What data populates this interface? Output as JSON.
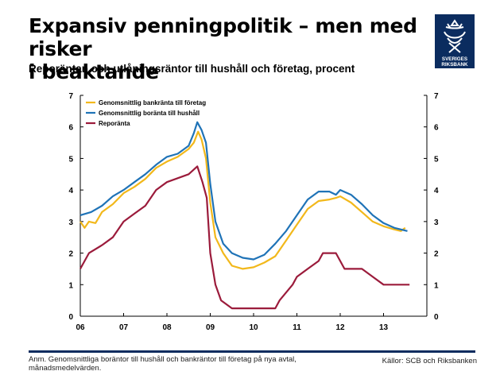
{
  "header": {
    "title_line1": "Expansiv penningpolitik – men med risker",
    "title_line2": "i beaktande",
    "subtitle": "Reporäntan och utlåningsräntor till hushåll och företag, procent"
  },
  "logo": {
    "text_line1": "SVERIGES",
    "text_line2": "RIKSBANK",
    "color": "#0b2c5f"
  },
  "footer": {
    "note": "Anm. Genomsnittliga boräntor till hushåll och bankräntor till företag på nya avtal, månadsmedelvärden.",
    "source": "Källor: SCB och Riksbanken"
  },
  "chart_data": {
    "type": "line",
    "xlim": [
      2006,
      2014
    ],
    "ylim": [
      0,
      7
    ],
    "x_ticks": [
      "06",
      "07",
      "08",
      "09",
      "10",
      "11",
      "12",
      "13"
    ],
    "y_ticks": [
      "0",
      "1",
      "2",
      "3",
      "4",
      "5",
      "6",
      "7"
    ],
    "legend_placement": "top-left",
    "grid": false,
    "series": [
      {
        "name": "Genomsnittlig bankränta till företag",
        "color": "#f2b81b",
        "points": [
          [
            2006.0,
            3.0
          ],
          [
            2006.1,
            2.8
          ],
          [
            2006.2,
            3.0
          ],
          [
            2006.35,
            2.95
          ],
          [
            2006.5,
            3.3
          ],
          [
            2006.75,
            3.55
          ],
          [
            2007.0,
            3.9
          ],
          [
            2007.25,
            4.1
          ],
          [
            2007.5,
            4.35
          ],
          [
            2007.75,
            4.7
          ],
          [
            2008.0,
            4.9
          ],
          [
            2008.25,
            5.05
          ],
          [
            2008.5,
            5.3
          ],
          [
            2008.62,
            5.5
          ],
          [
            2008.72,
            5.85
          ],
          [
            2008.8,
            5.6
          ],
          [
            2008.9,
            5.0
          ],
          [
            2009.0,
            3.6
          ],
          [
            2009.12,
            2.5
          ],
          [
            2009.3,
            2.0
          ],
          [
            2009.5,
            1.6
          ],
          [
            2009.75,
            1.5
          ],
          [
            2010.0,
            1.55
          ],
          [
            2010.25,
            1.7
          ],
          [
            2010.5,
            1.9
          ],
          [
            2010.75,
            2.4
          ],
          [
            2011.0,
            2.9
          ],
          [
            2011.25,
            3.4
          ],
          [
            2011.5,
            3.65
          ],
          [
            2011.75,
            3.7
          ],
          [
            2011.9,
            3.75
          ],
          [
            2012.0,
            3.8
          ],
          [
            2012.25,
            3.6
          ],
          [
            2012.5,
            3.3
          ],
          [
            2012.75,
            3.0
          ],
          [
            2013.0,
            2.85
          ],
          [
            2013.25,
            2.75
          ],
          [
            2013.4,
            2.7
          ],
          [
            2013.5,
            2.8
          ]
        ]
      },
      {
        "name": "Genomsnittlig boränta till hushåll",
        "color": "#1f73b7",
        "points": [
          [
            2006.0,
            3.2
          ],
          [
            2006.25,
            3.3
          ],
          [
            2006.5,
            3.5
          ],
          [
            2006.75,
            3.8
          ],
          [
            2007.0,
            4.0
          ],
          [
            2007.25,
            4.25
          ],
          [
            2007.5,
            4.5
          ],
          [
            2007.75,
            4.8
          ],
          [
            2008.0,
            5.05
          ],
          [
            2008.25,
            5.15
          ],
          [
            2008.5,
            5.4
          ],
          [
            2008.62,
            5.8
          ],
          [
            2008.7,
            6.15
          ],
          [
            2008.8,
            5.9
          ],
          [
            2008.9,
            5.5
          ],
          [
            2009.0,
            4.2
          ],
          [
            2009.12,
            3.0
          ],
          [
            2009.3,
            2.3
          ],
          [
            2009.5,
            2.0
          ],
          [
            2009.75,
            1.85
          ],
          [
            2010.0,
            1.8
          ],
          [
            2010.25,
            1.95
          ],
          [
            2010.5,
            2.3
          ],
          [
            2010.75,
            2.7
          ],
          [
            2011.0,
            3.2
          ],
          [
            2011.25,
            3.7
          ],
          [
            2011.5,
            3.95
          ],
          [
            2011.75,
            3.95
          ],
          [
            2011.9,
            3.85
          ],
          [
            2012.0,
            4.0
          ],
          [
            2012.25,
            3.85
          ],
          [
            2012.5,
            3.55
          ],
          [
            2012.75,
            3.2
          ],
          [
            2013.0,
            2.95
          ],
          [
            2013.25,
            2.8
          ],
          [
            2013.4,
            2.75
          ],
          [
            2013.55,
            2.7
          ]
        ]
      },
      {
        "name": "Reporänta",
        "color": "#9b1b3b",
        "points": [
          [
            2006.0,
            1.5
          ],
          [
            2006.2,
            2.0
          ],
          [
            2006.5,
            2.25
          ],
          [
            2006.75,
            2.5
          ],
          [
            2007.0,
            3.0
          ],
          [
            2007.25,
            3.25
          ],
          [
            2007.5,
            3.5
          ],
          [
            2007.75,
            4.0
          ],
          [
            2008.0,
            4.25
          ],
          [
            2008.5,
            4.5
          ],
          [
            2008.7,
            4.75
          ],
          [
            2008.82,
            4.25
          ],
          [
            2008.92,
            3.75
          ],
          [
            2009.0,
            2.0
          ],
          [
            2009.12,
            1.0
          ],
          [
            2009.25,
            0.5
          ],
          [
            2009.5,
            0.25
          ],
          [
            2010.0,
            0.25
          ],
          [
            2010.5,
            0.25
          ],
          [
            2010.6,
            0.5
          ],
          [
            2010.75,
            0.75
          ],
          [
            2010.9,
            1.0
          ],
          [
            2011.0,
            1.25
          ],
          [
            2011.25,
            1.5
          ],
          [
            2011.5,
            1.75
          ],
          [
            2011.6,
            2.0
          ],
          [
            2011.9,
            2.0
          ],
          [
            2012.0,
            1.75
          ],
          [
            2012.1,
            1.5
          ],
          [
            2012.5,
            1.5
          ],
          [
            2012.75,
            1.25
          ],
          [
            2013.0,
            1.0
          ],
          [
            2013.6,
            1.0
          ]
        ]
      }
    ]
  }
}
